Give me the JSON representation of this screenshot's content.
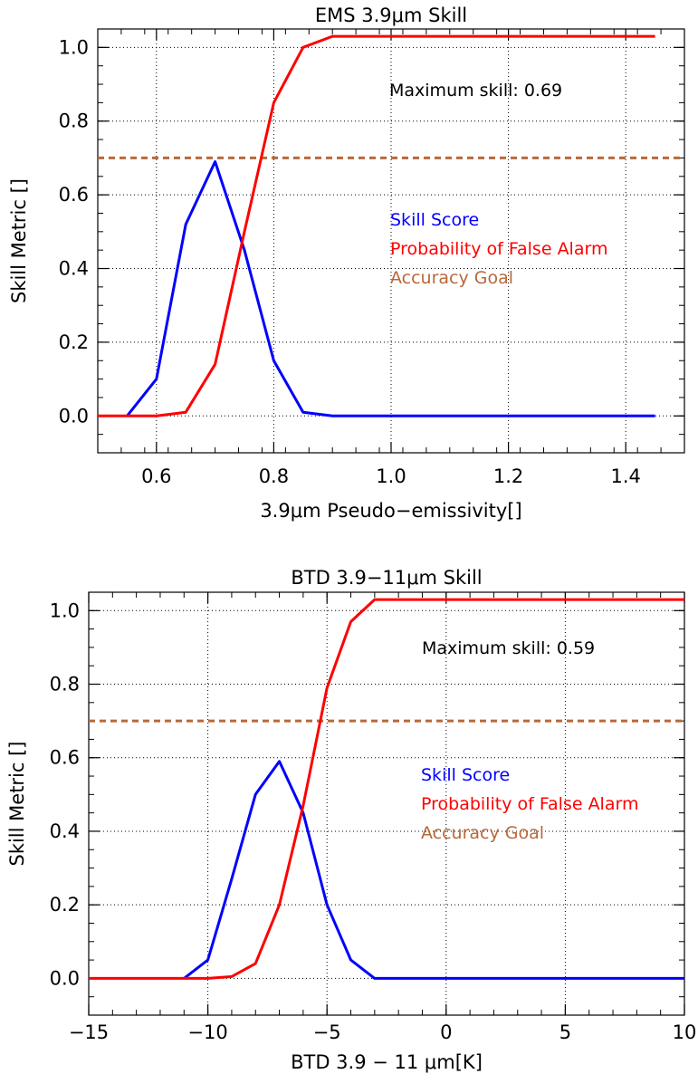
{
  "chart_data": [
    {
      "type": "line",
      "title": "EMS 3.9μm Skill",
      "xlabel": "3.9μm Pseudo−emissivity[]",
      "ylabel": "Skill Metric []",
      "xlim": [
        0.5,
        1.5
      ],
      "ylim": [
        -0.1,
        1.05
      ],
      "xticks": [
        0.6,
        0.8,
        1.0,
        1.2,
        1.4
      ],
      "xticklabels": [
        "0.6",
        "0.8",
        "1.0",
        "1.2",
        "1.4"
      ],
      "yticks": [
        0.0,
        0.2,
        0.4,
        0.6,
        0.8,
        1.0
      ],
      "yticklabels": [
        "0.0",
        "0.2",
        "0.4",
        "0.6",
        "0.8",
        "1.0"
      ],
      "grid": true,
      "annotation": "Maximum skill: 0.69",
      "legend_placement": "center-right",
      "series": [
        {
          "name": "Skill Score",
          "color": "#0000ff",
          "x": [
            0.55,
            0.6,
            0.65,
            0.7,
            0.75,
            0.8,
            0.85,
            0.9,
            0.95,
            1.0,
            1.05,
            1.1,
            1.15,
            1.2,
            1.25,
            1.3,
            1.35,
            1.4,
            1.45
          ],
          "y": [
            0.0,
            0.1,
            0.52,
            0.69,
            0.45,
            0.15,
            0.01,
            0.0,
            0.0,
            0.0,
            0.0,
            0.0,
            0.0,
            0.0,
            0.0,
            0.0,
            0.0,
            0.0,
            0.0
          ]
        },
        {
          "name": "Probability of False Alarm",
          "color": "#ff0000",
          "x": [
            0.5,
            0.55,
            0.6,
            0.65,
            0.7,
            0.75,
            0.8,
            0.85,
            0.9,
            0.95,
            1.0,
            1.05,
            1.1,
            1.15,
            1.2,
            1.25,
            1.3,
            1.35,
            1.4,
            1.45
          ],
          "y": [
            0.0,
            0.0,
            0.0,
            0.01,
            0.14,
            0.5,
            0.85,
            1.0,
            1.03,
            1.03,
            1.03,
            1.03,
            1.03,
            1.03,
            1.03,
            1.03,
            1.03,
            1.03,
            1.03,
            1.03
          ]
        },
        {
          "name": "Accuracy Goal",
          "color": "#b8683a",
          "dashed": true,
          "x": [
            0.5,
            1.5
          ],
          "y": [
            0.7,
            0.7
          ]
        }
      ]
    },
    {
      "type": "line",
      "title": "BTD 3.9−11μm Skill",
      "xlabel": "BTD 3.9 − 11 μm[K]",
      "ylabel": "Skill Metric []",
      "xlim": [
        -15,
        10
      ],
      "ylim": [
        -0.1,
        1.05
      ],
      "xticks": [
        -15,
        -10,
        -5,
        0,
        5,
        10
      ],
      "xticklabels": [
        "−15",
        "−10",
        "−5",
        "0",
        "5",
        "10"
      ],
      "yticks": [
        0.0,
        0.2,
        0.4,
        0.6,
        0.8,
        1.0
      ],
      "yticklabels": [
        "0.0",
        "0.2",
        "0.4",
        "0.6",
        "0.8",
        "1.0"
      ],
      "grid": true,
      "annotation": "Maximum skill: 0.59",
      "legend_placement": "center-right",
      "series": [
        {
          "name": "Skill Score",
          "color": "#0000ff",
          "x": [
            -11,
            -10,
            -9,
            -8,
            -7,
            -6,
            -5,
            -4,
            -3,
            -2.5,
            0,
            5,
            10
          ],
          "y": [
            0.0,
            0.05,
            0.27,
            0.5,
            0.59,
            0.45,
            0.2,
            0.05,
            0.0,
            0.0,
            0.0,
            0.0,
            0.0
          ]
        },
        {
          "name": "Probability of False Alarm",
          "color": "#ff0000",
          "x": [
            -15,
            -10,
            -9,
            -8,
            -7,
            -6,
            -5,
            -4,
            -3,
            -2,
            0,
            5,
            10
          ],
          "y": [
            0.0,
            0.0,
            0.005,
            0.04,
            0.2,
            0.47,
            0.79,
            0.97,
            1.03,
            1.03,
            1.03,
            1.03,
            1.03
          ]
        },
        {
          "name": "Accuracy Goal",
          "color": "#b8683a",
          "dashed": true,
          "x": [
            -15,
            10
          ],
          "y": [
            0.7,
            0.7
          ]
        }
      ]
    }
  ]
}
